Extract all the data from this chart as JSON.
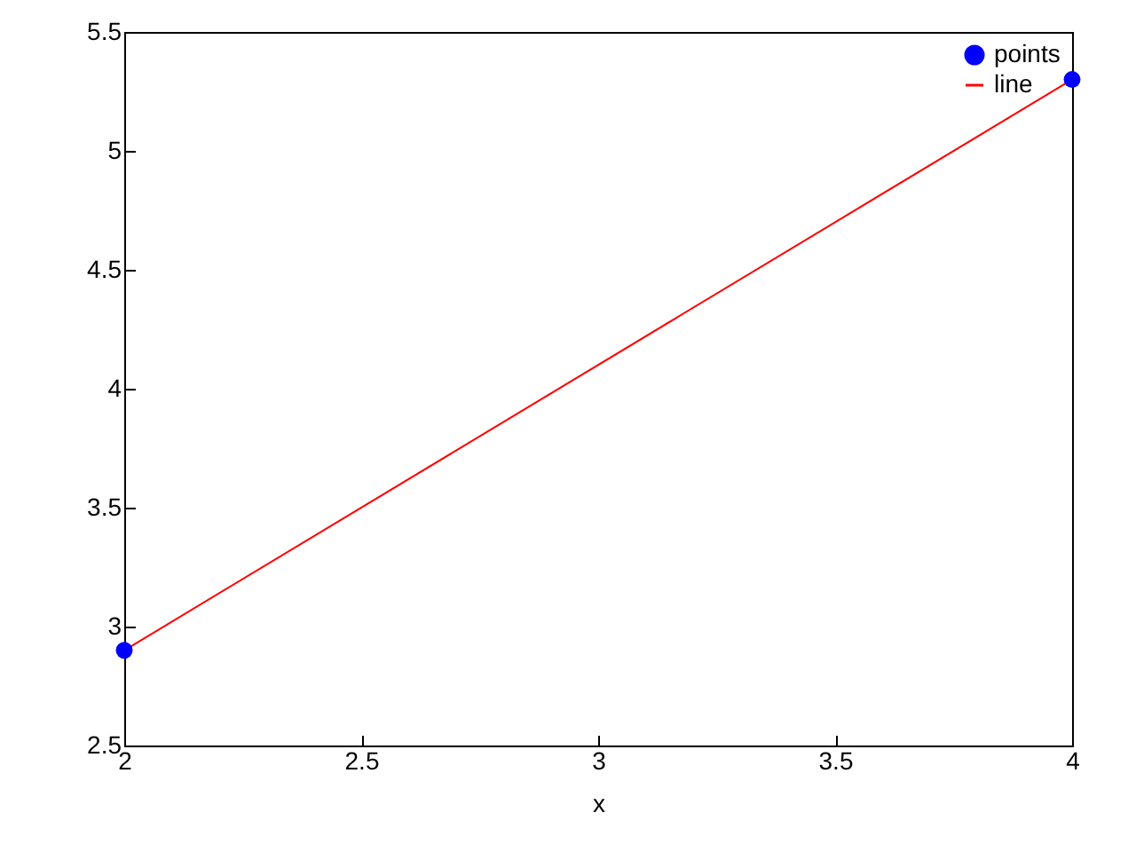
{
  "chart_data": {
    "type": "scatter",
    "xlabel": "x",
    "x": [
      2,
      4
    ],
    "series": [
      {
        "name": "points",
        "type": "scatter",
        "color": "#0000ff",
        "marker": "circle",
        "values": [
          2.9,
          5.3
        ]
      },
      {
        "name": "line",
        "type": "line",
        "color": "#ff0000",
        "x": [
          2,
          4
        ],
        "values": [
          2.9,
          5.3
        ]
      }
    ],
    "xlim": [
      2,
      4
    ],
    "xticks": [
      2,
      2.5,
      3,
      3.5,
      4
    ],
    "ylim": [
      2.5,
      5.5
    ],
    "yticks": [
      2.5,
      3,
      3.5,
      4,
      4.5,
      5,
      5.5
    ],
    "grid": false,
    "legend": "top right"
  }
}
